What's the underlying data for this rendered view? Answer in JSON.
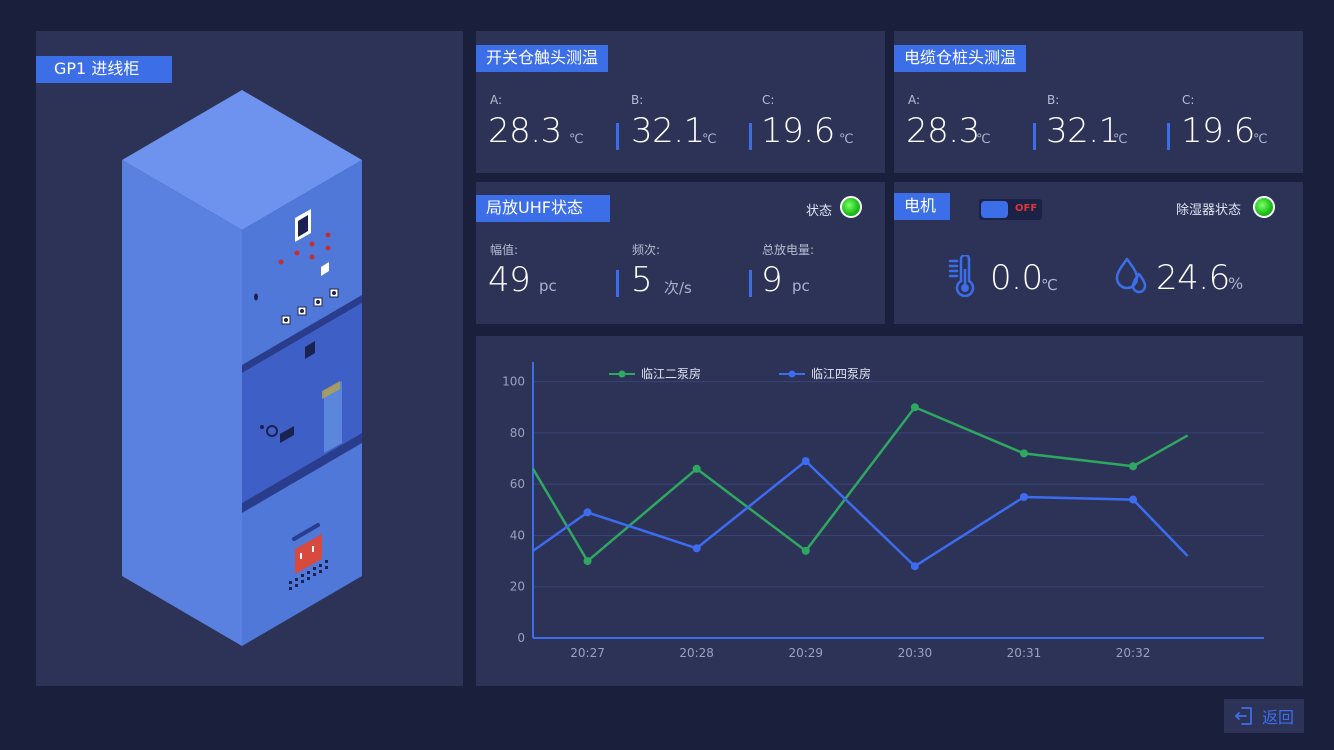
{
  "cabinet": {
    "title": "GP1 进线柜"
  },
  "switch_temp": {
    "title": "开关仓触头测温",
    "a_label": "A:",
    "a_value": "28.3",
    "a_unit": "℃",
    "b_label": "B:",
    "b_value": "32.1",
    "b_unit": "℃",
    "c_label": "C:",
    "c_value": "19.6",
    "c_unit": "℃"
  },
  "cable_temp": {
    "title": "电缆仓桩头测温",
    "a_label": "A:",
    "a_value": "28.3",
    "a_unit": "℃",
    "b_label": "B:",
    "b_value": "32.1",
    "b_unit": "℃",
    "c_label": "C:",
    "c_value": "19.6",
    "c_unit": "℃"
  },
  "uhf": {
    "title": "局放UHF状态",
    "status_label": "状态",
    "amp_label": "幅值:",
    "amp_value": "49",
    "amp_unit": "pc",
    "freq_label": "频次:",
    "freq_value": "5",
    "freq_unit": "次/s",
    "total_label": "总放电量:",
    "total_value": "9",
    "total_unit": "pc"
  },
  "motor": {
    "title": "电机",
    "toggle_label": "OFF",
    "dehumid_label": "除湿器状态",
    "temp_value": "0.0",
    "temp_unit": "℃",
    "humidity_value": "24.6",
    "humidity_unit": "%"
  },
  "chart_data": {
    "type": "line",
    "title": "",
    "xlabel": "",
    "ylabel": "",
    "ylim": [
      0,
      110
    ],
    "yticks": [
      0,
      20,
      40,
      60,
      80,
      100
    ],
    "x_tick_labels": [
      "20:27",
      "20:28",
      "20:29",
      "20:30",
      "20:31",
      "20:32"
    ],
    "x": [
      0,
      0.5,
      1.5,
      2.5,
      3.5,
      4.5,
      5.5,
      6.0
    ],
    "series": [
      {
        "name": "临江二泵房",
        "color": "#2ea860",
        "values": [
          66,
          30,
          66,
          34,
          90,
          72,
          67,
          79
        ]
      },
      {
        "name": "临江四泵房",
        "color": "#3d6cf0",
        "values": [
          34,
          49,
          35,
          69,
          28,
          55,
          54,
          32
        ]
      }
    ],
    "legend_position": "top",
    "grid": true
  },
  "footer": {
    "back_label": "返回"
  },
  "colors": {
    "accent": "#3c6ee8",
    "panel": "#2d3357",
    "background": "#1a1f3c"
  }
}
